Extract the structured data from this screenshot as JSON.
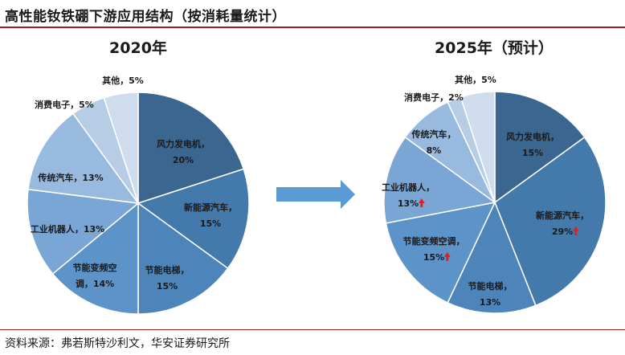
{
  "title": "高性能钕铁硼下游应用结构（按消耗量统计）",
  "source": "资料来源：弗若斯特沙利文，华安证券研究所",
  "colors": {
    "title_rule": "#a11c1c",
    "arrow": "#5b9bd5",
    "up_arrow": "#e02020"
  },
  "chart_data": [
    {
      "type": "pie",
      "title": "2020年",
      "slices": [
        {
          "label": "风力发电机",
          "value": 20,
          "value_label": "20%",
          "color": "#3b6690"
        },
        {
          "label": "新能源汽车",
          "value": 15,
          "value_label": "15%",
          "color": "#4479ab"
        },
        {
          "label": "节能电梯",
          "value": 15,
          "value_label": "15%",
          "color": "#4d85ba"
        },
        {
          "label": "节能变频空调",
          "value": 14,
          "value_label": "14%",
          "color": "#5c94c9"
        },
        {
          "label": "工业机器人",
          "value": 13,
          "value_label": "13%",
          "color": "#79a6d4"
        },
        {
          "label": "传统汽车",
          "value": 13,
          "value_label": "13%",
          "color": "#98bade"
        },
        {
          "label": "消费电子",
          "value": 5,
          "value_label": "5%",
          "color": "#b7cde6"
        },
        {
          "label": "其他",
          "value": 5,
          "value_label": "5%",
          "color": "#cfdcee"
        }
      ]
    },
    {
      "type": "pie",
      "title": "2025年（预计）",
      "slices": [
        {
          "label": "风力发电机",
          "value": 15,
          "value_label": "15%",
          "color": "#3b6690"
        },
        {
          "label": "新能源汽车",
          "value": 29,
          "value_label": "29%",
          "trend": "up",
          "color": "#4479ab"
        },
        {
          "label": "节能电梯",
          "value": 13,
          "value_label": "13%",
          "color": "#4d85ba"
        },
        {
          "label": "节能变频空调",
          "value": 15,
          "value_label": "15%",
          "trend": "up",
          "color": "#5c94c9"
        },
        {
          "label": "工业机器人",
          "value": 13,
          "value_label": "13%",
          "trend": "up",
          "color": "#79a6d4"
        },
        {
          "label": "传统汽车",
          "value": 8,
          "value_label": "8%",
          "color": "#98bade"
        },
        {
          "label": "消费电子",
          "value": 2,
          "value_label": "2%",
          "color": "#b7cde6"
        },
        {
          "label": "其他",
          "value": 5,
          "value_label": "5%",
          "color": "#cfdcee"
        }
      ]
    }
  ]
}
